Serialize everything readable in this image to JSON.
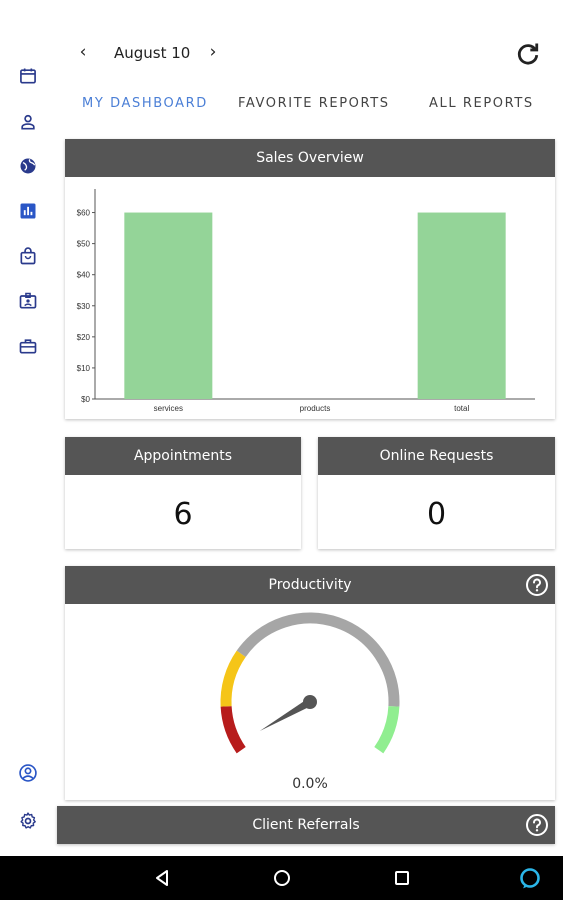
{
  "header": {
    "date": "August 10",
    "prev_icon": "chevron-left-icon",
    "next_icon": "chevron-right-icon",
    "refresh_icon": "refresh-icon"
  },
  "tabs": [
    {
      "label": "MY DASHBOARD",
      "active": true
    },
    {
      "label": "FAVORITE REPORTS",
      "active": false
    },
    {
      "label": "ALL REPORTS",
      "active": false
    }
  ],
  "sidebar": {
    "icons": [
      "calendar-icon",
      "person-icon",
      "globe-icon",
      "reports-icon",
      "shopping-bag-icon",
      "id-card-icon",
      "briefcase-icon"
    ],
    "bottom_icons": [
      "account-circle-icon",
      "settings-gear-icon"
    ]
  },
  "sales_overview": {
    "title": "Sales Overview",
    "chart_data": {
      "type": "bar",
      "categories": [
        "services",
        "products",
        "total"
      ],
      "values": [
        60,
        0,
        60
      ],
      "ylim": [
        0,
        65
      ],
      "yticks": [
        "$0",
        "$10",
        "$20",
        "$30",
        "$40",
        "$50",
        "$60"
      ],
      "bar_color": "#94d498",
      "grid": false
    }
  },
  "appointments": {
    "title": "Appointments",
    "value": "6"
  },
  "online_requests": {
    "title": "Online Requests",
    "value": "0"
  },
  "productivity": {
    "title": "Productivity",
    "value_label": "0.0%",
    "value": 0,
    "colors": {
      "red": "#b71c1c",
      "yellow": "#f5c518",
      "gray": "#a6a6a6",
      "green": "#90ee90"
    }
  },
  "client_referrals": {
    "title": "Client Referrals"
  },
  "system_nav": [
    "back-icon",
    "home-icon",
    "recents-icon",
    "alexa-icon"
  ],
  "colors": {
    "accent": "#4b7fd6",
    "header_bg": "#555555"
  }
}
